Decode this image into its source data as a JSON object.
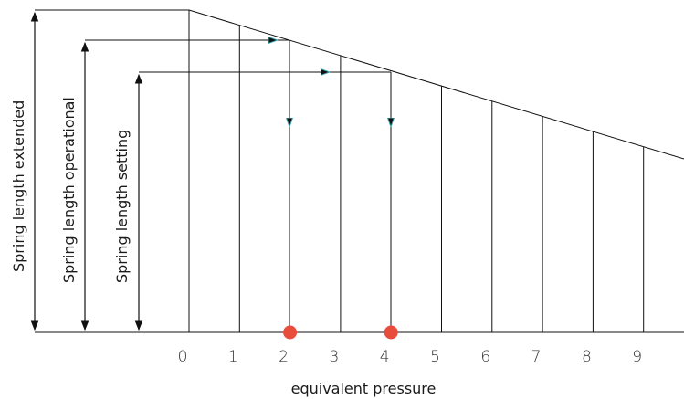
{
  "diagram": {
    "labels": {
      "extended": "Spring length extended",
      "operational": "Spring length operational",
      "setting": "Spring length  setting"
    },
    "x_axis_title": "equivalent pressure",
    "ticks": [
      "0",
      "1",
      "2",
      "3",
      "4",
      "5",
      "6",
      "7",
      "8",
      "9"
    ],
    "markers": [
      {
        "value": "2",
        "color": "#e84c3d"
      },
      {
        "value": "4",
        "color": "#e84c3d"
      }
    ],
    "arrowhead_color": "#3aa6b0",
    "line_color": "#111111"
  }
}
